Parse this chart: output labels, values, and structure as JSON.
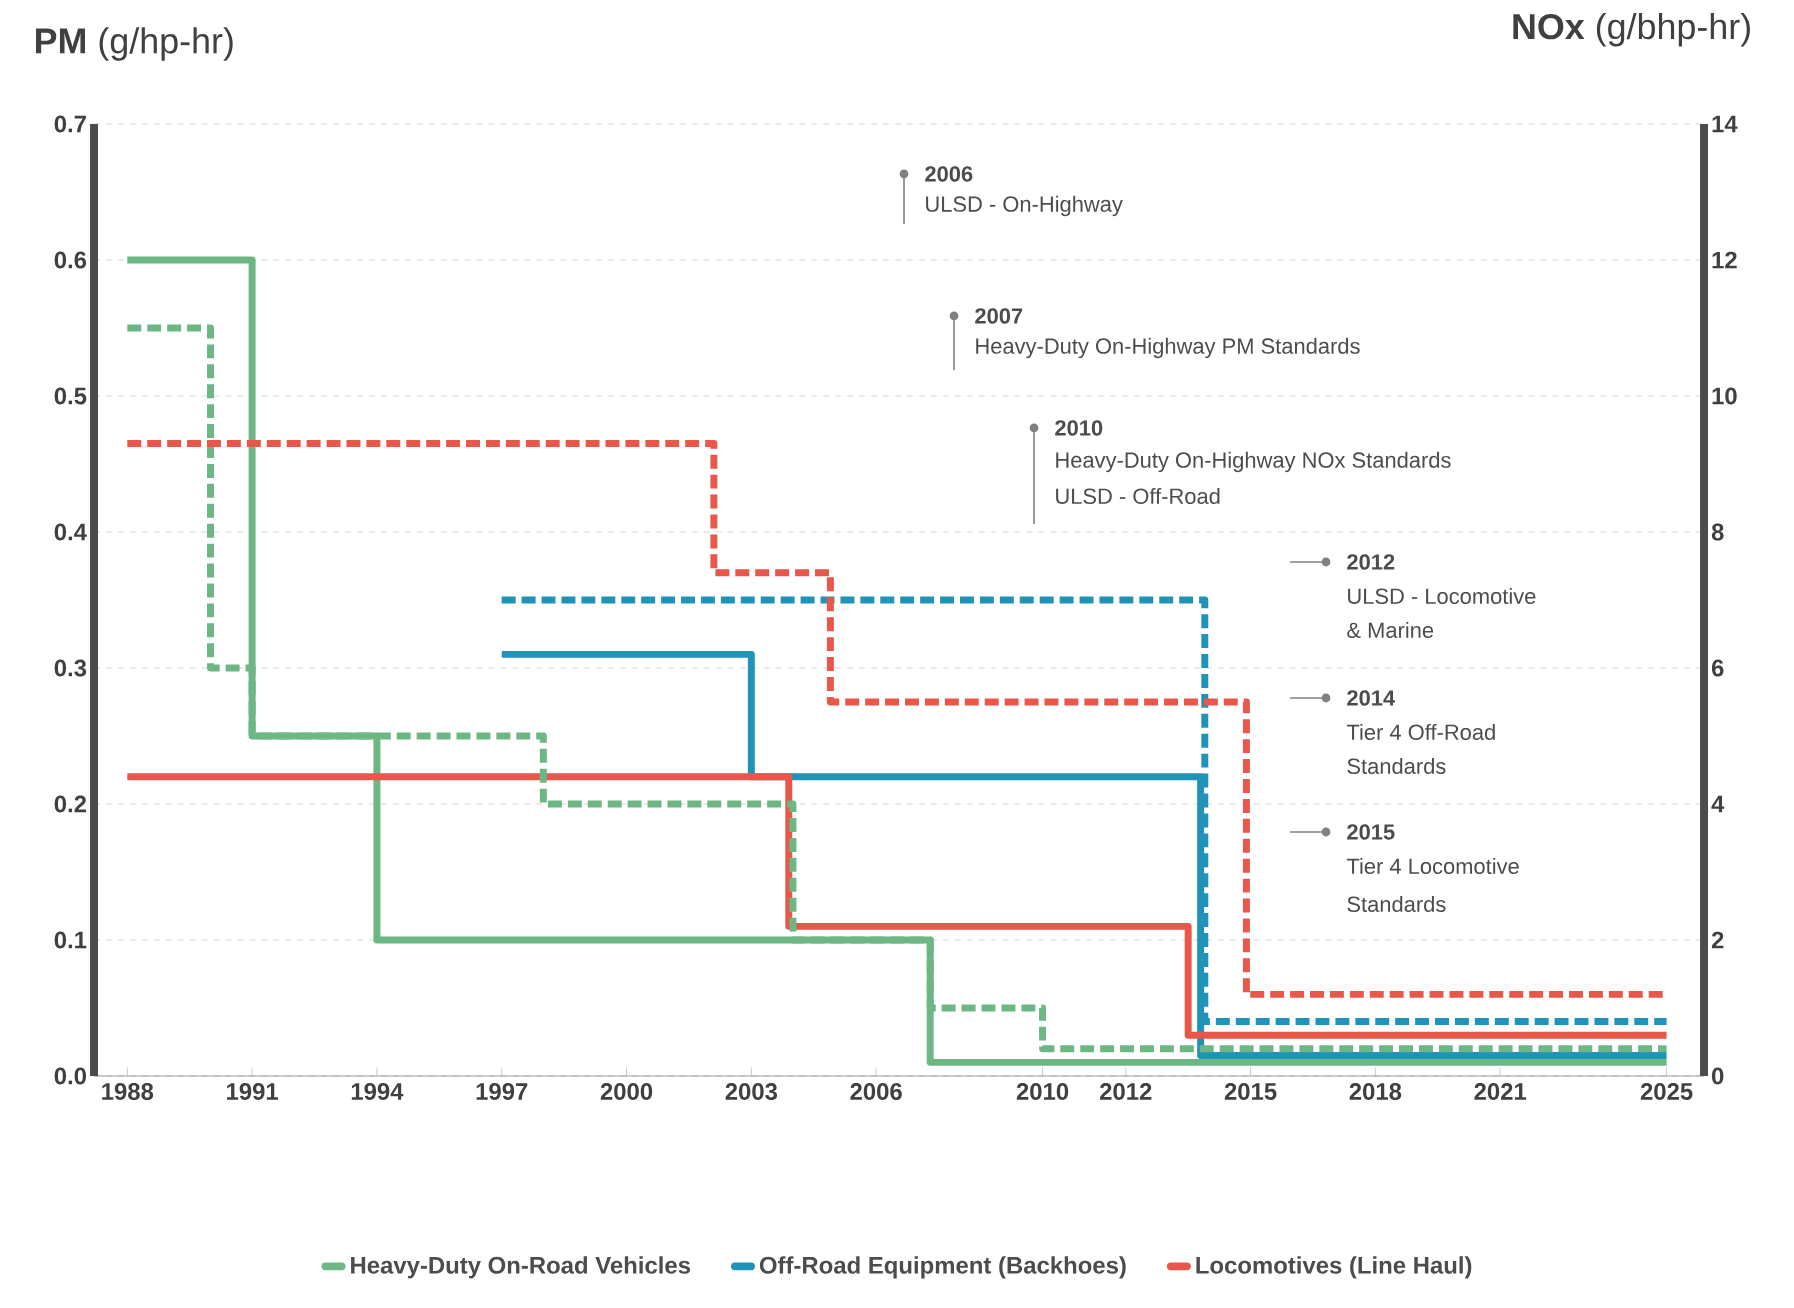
{
  "chart_data": {
    "type": "step",
    "ylabel": "**PM** (g/hp-hr)",
    "y2label": "**NOx** (g/bhp-hr)",
    "xlim": [
      1987.2,
      2025.9
    ],
    "xticks": [
      1988,
      1991,
      1994,
      1997,
      2000,
      2003,
      2006,
      2010,
      2012,
      2015,
      2018,
      2021,
      2025
    ],
    "ylim": [
      0,
      0.7
    ],
    "yticks": [
      {
        "value": 0,
        "label": "0.0"
      },
      0.1,
      0.2,
      0.3,
      0.4,
      0.5,
      0.6,
      0.7
    ],
    "y2lim": [
      0,
      14
    ],
    "y2ticks": [
      0,
      2,
      4,
      6,
      8,
      10,
      12,
      14
    ],
    "grid": "y",
    "legend": "bottom",
    "series": [
      {
        "name": "Heavy-Duty On-Road Vehicles",
        "color": "#6cb784",
        "line_style": "solid",
        "x": [
          1988,
          1991,
          1994,
          2007.3,
          2025
        ],
        "values": [
          0.6,
          0.25,
          0.1,
          0.01,
          0.01
        ]
      },
      {
        "name": "Off-Road Equipment (Backhoes)",
        "color": "#1f93b8",
        "line_style": "solid",
        "x": [
          1997,
          2003,
          2013.8,
          2025
        ],
        "values": [
          0.31,
          0.22,
          0.015,
          0.015
        ]
      },
      {
        "name": "Locomotives (Line Haul)",
        "color": "#e8574a",
        "line_style": "solid",
        "x": [
          1988,
          2003.9,
          2013.5,
          2025
        ],
        "values": [
          0.22,
          0.11,
          0.03,
          0.03
        ]
      },
      {
        "color": "#6cb784",
        "axis": "y2",
        "line_style": "dashed",
        "x": [
          1988,
          1990,
          1991,
          1998,
          2004,
          2007.3,
          2010,
          2025
        ],
        "values": [
          11,
          6,
          5,
          4,
          2,
          1,
          0.4,
          0.4
        ]
      },
      {
        "color": "#1f93b8",
        "axis": "y2",
        "line_style": "dashed",
        "x": [
          1997,
          2013.9,
          2025
        ],
        "values": [
          7,
          0.8,
          0.8
        ]
      },
      {
        "color": "#e8574a",
        "axis": "y2",
        "line_style": "dashed",
        "x": [
          1988,
          2002.1,
          2004.9,
          2014.9,
          2025
        ],
        "values": [
          9.3,
          7.4,
          5.5,
          1.2,
          1.2
        ]
      }
    ],
    "annotations": [
      "2006",
      "ULSD - On-Highway",
      "2007",
      "Heavy-Duty On-Highway PM Standards",
      "2010",
      "Heavy-Duty On-Highway NOx Standards",
      "ULSD - Off-Road",
      "2012",
      "ULSD - Locomotive",
      "& Marine",
      "2014",
      "Tier 4 Off-Road",
      "Standards",
      "2015",
      "Tier 4 Locomotive",
      "Standards"
    ]
  }
}
